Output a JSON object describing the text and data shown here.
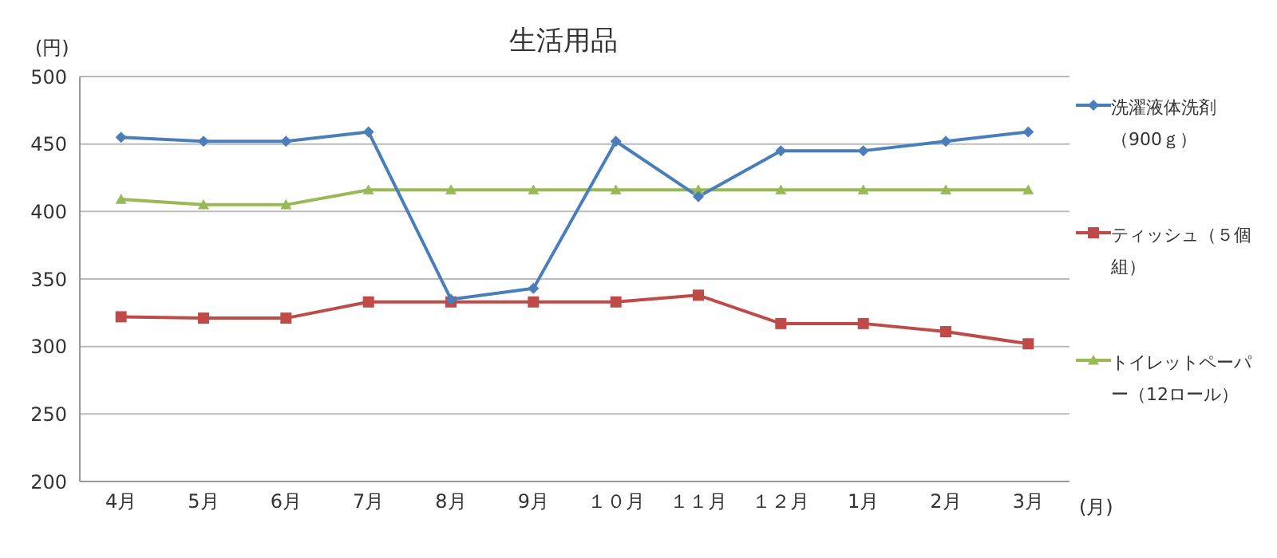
{
  "chart_data": {
    "type": "line",
    "title": "生活用品",
    "ylabel": "(円)",
    "xlabel": "(月)",
    "categories": [
      "4月",
      "5月",
      "6月",
      "7月",
      "8月",
      "9月",
      "１０月",
      "１１月",
      "１２月",
      "1月",
      "2月",
      "3月"
    ],
    "series": [
      {
        "name": "洗濯液体洗剤（900ｇ）",
        "color": "#4a7ebb",
        "marker": "diamond",
        "values": [
          455,
          452,
          452,
          459,
          335,
          343,
          452,
          411,
          445,
          445,
          452,
          459
        ]
      },
      {
        "name": "ティッシュ（５個組）",
        "color": "#be4b48",
        "marker": "square",
        "values": [
          322,
          321,
          321,
          333,
          333,
          333,
          333,
          338,
          317,
          317,
          311,
          302
        ]
      },
      {
        "name": "トイレットペーパー（12ロール）",
        "color": "#98b954",
        "marker": "triangle",
        "values": [
          409,
          405,
          405,
          416,
          416,
          416,
          416,
          416,
          416,
          416,
          416,
          416
        ]
      }
    ],
    "ylim": [
      200,
      500
    ],
    "yticks": [
      200,
      250,
      300,
      350,
      400,
      450,
      500
    ],
    "grid": "y",
    "legend": "right"
  }
}
